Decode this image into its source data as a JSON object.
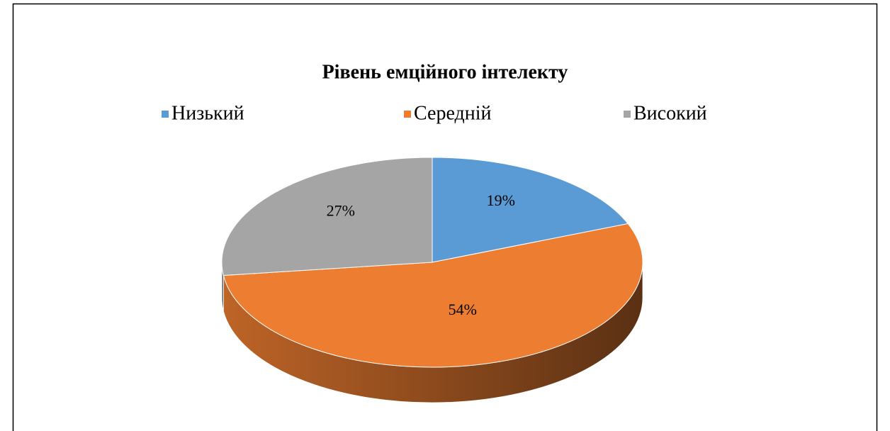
{
  "chart_data": {
    "type": "pie3d",
    "title": "Рівень емційного інтелекту",
    "categories": [
      "Низький",
      "Середній",
      "Високий"
    ],
    "values": [
      19,
      54,
      27
    ],
    "value_labels": [
      "19%",
      "54%",
      "27%"
    ],
    "colors": [
      "#5b9bd5",
      "#ed7d31",
      "#a5a5a5"
    ],
    "legend": "top"
  }
}
